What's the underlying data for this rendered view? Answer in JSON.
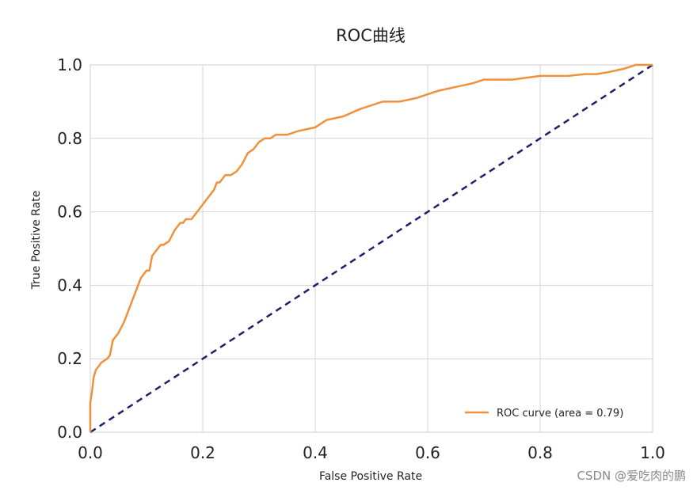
{
  "chart_data": {
    "type": "line",
    "title": "ROC曲线",
    "xlabel": "False Positive Rate",
    "ylabel": "True Positive Rate",
    "xlim": [
      0.0,
      1.0
    ],
    "ylim": [
      0.0,
      1.0
    ],
    "xticks": [
      "0.0",
      "0.2",
      "0.4",
      "0.6",
      "0.8",
      "1.0"
    ],
    "yticks": [
      "0.0",
      "0.2",
      "0.4",
      "0.6",
      "0.8",
      "1.0"
    ],
    "grid": true,
    "legend_position": "lower-right",
    "series": [
      {
        "name": "ROC curve (area = 0.79)",
        "style": "solid",
        "color": "#f0913a",
        "x": [
          0.0,
          0.0,
          0.003,
          0.006,
          0.01,
          0.015,
          0.02,
          0.03,
          0.035,
          0.04,
          0.05,
          0.06,
          0.065,
          0.07,
          0.08,
          0.085,
          0.09,
          0.1,
          0.105,
          0.11,
          0.12,
          0.125,
          0.13,
          0.14,
          0.15,
          0.16,
          0.165,
          0.17,
          0.18,
          0.19,
          0.2,
          0.21,
          0.22,
          0.225,
          0.23,
          0.24,
          0.25,
          0.26,
          0.27,
          0.28,
          0.29,
          0.3,
          0.31,
          0.32,
          0.33,
          0.35,
          0.37,
          0.4,
          0.42,
          0.45,
          0.48,
          0.5,
          0.52,
          0.55,
          0.58,
          0.6,
          0.62,
          0.65,
          0.68,
          0.7,
          0.75,
          0.8,
          0.85,
          0.88,
          0.9,
          0.92,
          0.95,
          0.97,
          1.0
        ],
        "y": [
          0.0,
          0.08,
          0.11,
          0.15,
          0.17,
          0.18,
          0.19,
          0.2,
          0.21,
          0.25,
          0.27,
          0.3,
          0.32,
          0.34,
          0.38,
          0.4,
          0.42,
          0.44,
          0.44,
          0.48,
          0.5,
          0.51,
          0.51,
          0.52,
          0.55,
          0.57,
          0.57,
          0.58,
          0.58,
          0.6,
          0.62,
          0.64,
          0.66,
          0.68,
          0.68,
          0.7,
          0.7,
          0.71,
          0.73,
          0.76,
          0.77,
          0.79,
          0.8,
          0.8,
          0.81,
          0.81,
          0.82,
          0.83,
          0.85,
          0.86,
          0.88,
          0.89,
          0.9,
          0.9,
          0.91,
          0.92,
          0.93,
          0.94,
          0.95,
          0.96,
          0.96,
          0.97,
          0.97,
          0.975,
          0.975,
          0.98,
          0.99,
          1.0,
          1.0
        ]
      },
      {
        "name": "",
        "style": "dashed",
        "color": "#1f1f6b",
        "x": [
          0.0,
          1.0
        ],
        "y": [
          0.0,
          1.0
        ]
      }
    ]
  },
  "watermark": "CSDN @爱吃肉的鹏"
}
